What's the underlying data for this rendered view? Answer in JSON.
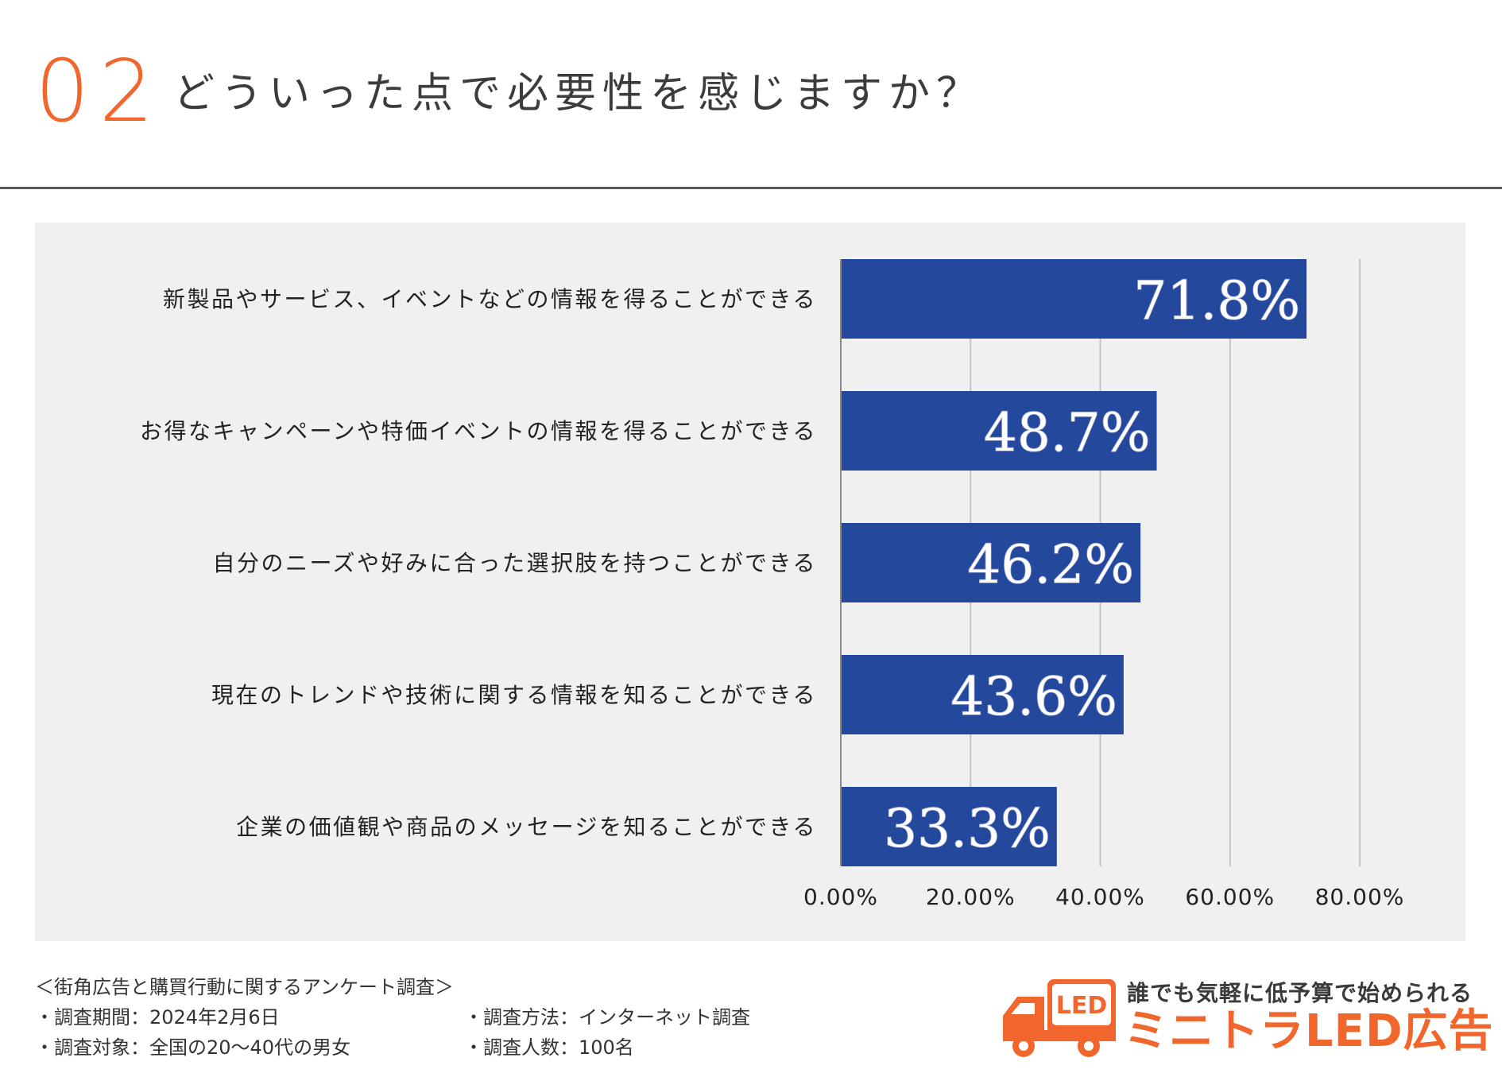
{
  "header": {
    "number": "02",
    "title": "どういった点で必要性を感じますか？"
  },
  "chart_data": {
    "type": "bar",
    "orientation": "horizontal",
    "categories": [
      "新製品やサービス、イベントなどの情報を得ることができる",
      "お得なキャンペーンや特価イベントの情報を得ることができる",
      "自分のニーズや好みに合った選択肢を持つことができる",
      "現在のトレンドや技術に関する情報を知ることができる",
      "企業の価値観や商品のメッセージを知ることができる"
    ],
    "values": [
      71.8,
      48.7,
      46.2,
      43.6,
      33.3
    ],
    "value_labels": [
      "71.8%",
      "48.7%",
      "46.2%",
      "43.6%",
      "33.3%"
    ],
    "xlim": [
      0,
      80
    ],
    "xticks": [
      0,
      20,
      40,
      60,
      80
    ],
    "xtick_labels": [
      "0.00%",
      "20.00%",
      "40.00%",
      "60.00%",
      "80.00%"
    ],
    "grid": true,
    "bar_color": "#24499c",
    "title": "",
    "xlabel": "",
    "ylabel": ""
  },
  "footer": {
    "survey_title": "＜街角広告と購買行動に関するアンケート調査＞",
    "period": "・調査期間：2024年2月6日",
    "method": "・調査方法：インターネット調査",
    "target": "・調査対象：全国の20〜40代の男女",
    "count": "・調査人数：100名"
  },
  "brand": {
    "tagline": "誰でも気軽に低予算で始められる",
    "name": "ミニトラLED広告",
    "truck_text": "LED",
    "truck_icon": "truck-icon",
    "color": "#f0662c"
  },
  "colors": {
    "accent": "#f0662c",
    "bar": "#24499c",
    "panel": "#f0f0f0"
  }
}
